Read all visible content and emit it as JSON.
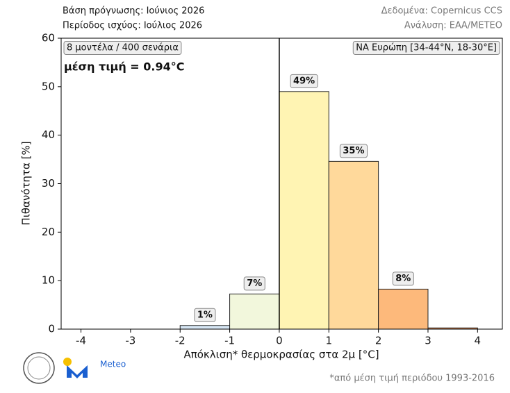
{
  "chart_data": {
    "type": "histogram",
    "header_left": [
      "Βάση πρόγνωσης: Ιούνιος 2026",
      "Περίοδος ισχύος: Ιούλιος 2026"
    ],
    "header_right": [
      "Δεδομένα: Copernicus CCS",
      "Ανάλυση: ΕΑΑ/METEO"
    ],
    "annotation_left": "8 μοντέλα / 400 σενάρια",
    "annotation_right": "ΝΑ Ευρώπη [34-44°N, 18-30°E]",
    "mean_text": "μέση τιμή = 0.94°C",
    "xlabel": "Απόκλιση* θερμοκρασίας στα 2μ [°C]",
    "ylabel": "Πιθανότητα [%]",
    "footnote": "*από μέση τιμή περιόδου 1993-2016",
    "logo_text": "Meteo",
    "bins": [
      -4,
      -3,
      -2,
      -1,
      0,
      1,
      2,
      3,
      4
    ],
    "values": [
      0,
      0,
      0.75,
      7.25,
      49,
      34.6,
      8.25,
      0.25
    ],
    "value_labels": [
      null,
      null,
      "1%",
      "7%",
      "49%",
      "35%",
      "8%",
      null
    ],
    "colors": [
      "#d6e6f4",
      "#d6e6f4",
      "#d6e6f4",
      "#f2f7dc",
      "#fff4b3",
      "#ffd99b",
      "#fdb97b",
      "#f08a4b"
    ],
    "vline": 0,
    "xlim": [
      -4.4,
      4.5
    ],
    "ylim": [
      0,
      60
    ],
    "xticks": [
      -4,
      -3,
      -2,
      -1,
      0,
      1,
      2,
      3,
      4
    ],
    "yticks": [
      0,
      10,
      20,
      30,
      40,
      50,
      60
    ]
  }
}
